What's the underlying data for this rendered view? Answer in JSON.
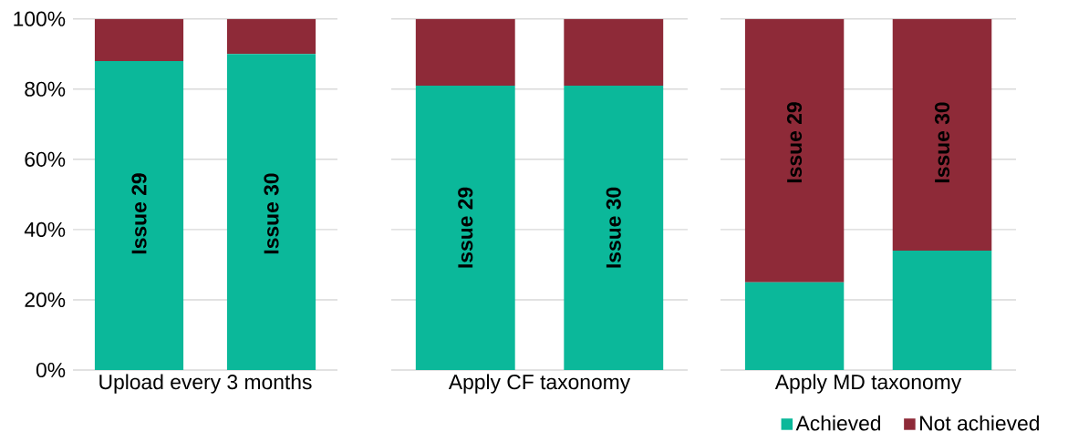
{
  "chart_data": [
    {
      "type": "bar",
      "stacked": true,
      "xlabel": "Upload every 3 months",
      "categories": [
        "Issue  29",
        "Issue 30"
      ],
      "series": [
        {
          "color": "#0bb89a",
          "values": [
            88,
            90
          ]
        },
        {
          "color": "#8e2a38",
          "values": [
            12,
            10
          ]
        }
      ],
      "ylim": [
        0,
        100
      ],
      "yticks": [
        {
          "value": 0,
          "label": "0%"
        },
        {
          "value": 20,
          "label": "20%"
        },
        {
          "value": 40,
          "label": "40%"
        },
        {
          "value": 60,
          "label": "60%"
        },
        {
          "value": 80,
          "label": "80%"
        },
        {
          "value": 100,
          "label": "100%"
        }
      ],
      "grid": "y",
      "legend": false
    },
    {
      "type": "bar",
      "stacked": true,
      "xlabel": "Apply CF taxonomy",
      "categories": [
        "Issue 29",
        "Issue 30"
      ],
      "series": [
        {
          "color": "#0bb89a",
          "values": [
            81,
            81
          ]
        },
        {
          "color": "#8e2a38",
          "values": [
            19,
            19
          ]
        }
      ],
      "ylim": [
        0,
        100
      ],
      "yticks": [
        {
          "value": 0,
          "label": null
        },
        {
          "value": 20,
          "label": null
        },
        {
          "value": 40,
          "label": null
        },
        {
          "value": 60,
          "label": null
        },
        {
          "value": 80,
          "label": null
        },
        {
          "value": 100,
          "label": null
        }
      ],
      "tick_labels": "x",
      "grid": "y",
      "legend": false
    },
    {
      "type": "bar",
      "stacked": true,
      "xlabel": "Apply MD taxonomy",
      "categories": [
        "Issue 29",
        "Issue 30"
      ],
      "series": [
        {
          "name": "Achieved",
          "color": "#0bb89a",
          "values": [
            25,
            34
          ]
        },
        {
          "name": "Not achieved",
          "color": "#8e2a38",
          "values": [
            75,
            66
          ]
        }
      ],
      "ylim": [
        0,
        100
      ],
      "yticks": [
        {
          "value": 0,
          "label": null
        },
        {
          "value": 20,
          "label": null
        },
        {
          "value": 40,
          "label": null
        },
        {
          "value": 60,
          "label": null
        },
        {
          "value": 80,
          "label": null
        },
        {
          "value": 100,
          "label": null
        }
      ],
      "tick_labels": "x",
      "grid": "y",
      "legend": "bottom"
    }
  ]
}
